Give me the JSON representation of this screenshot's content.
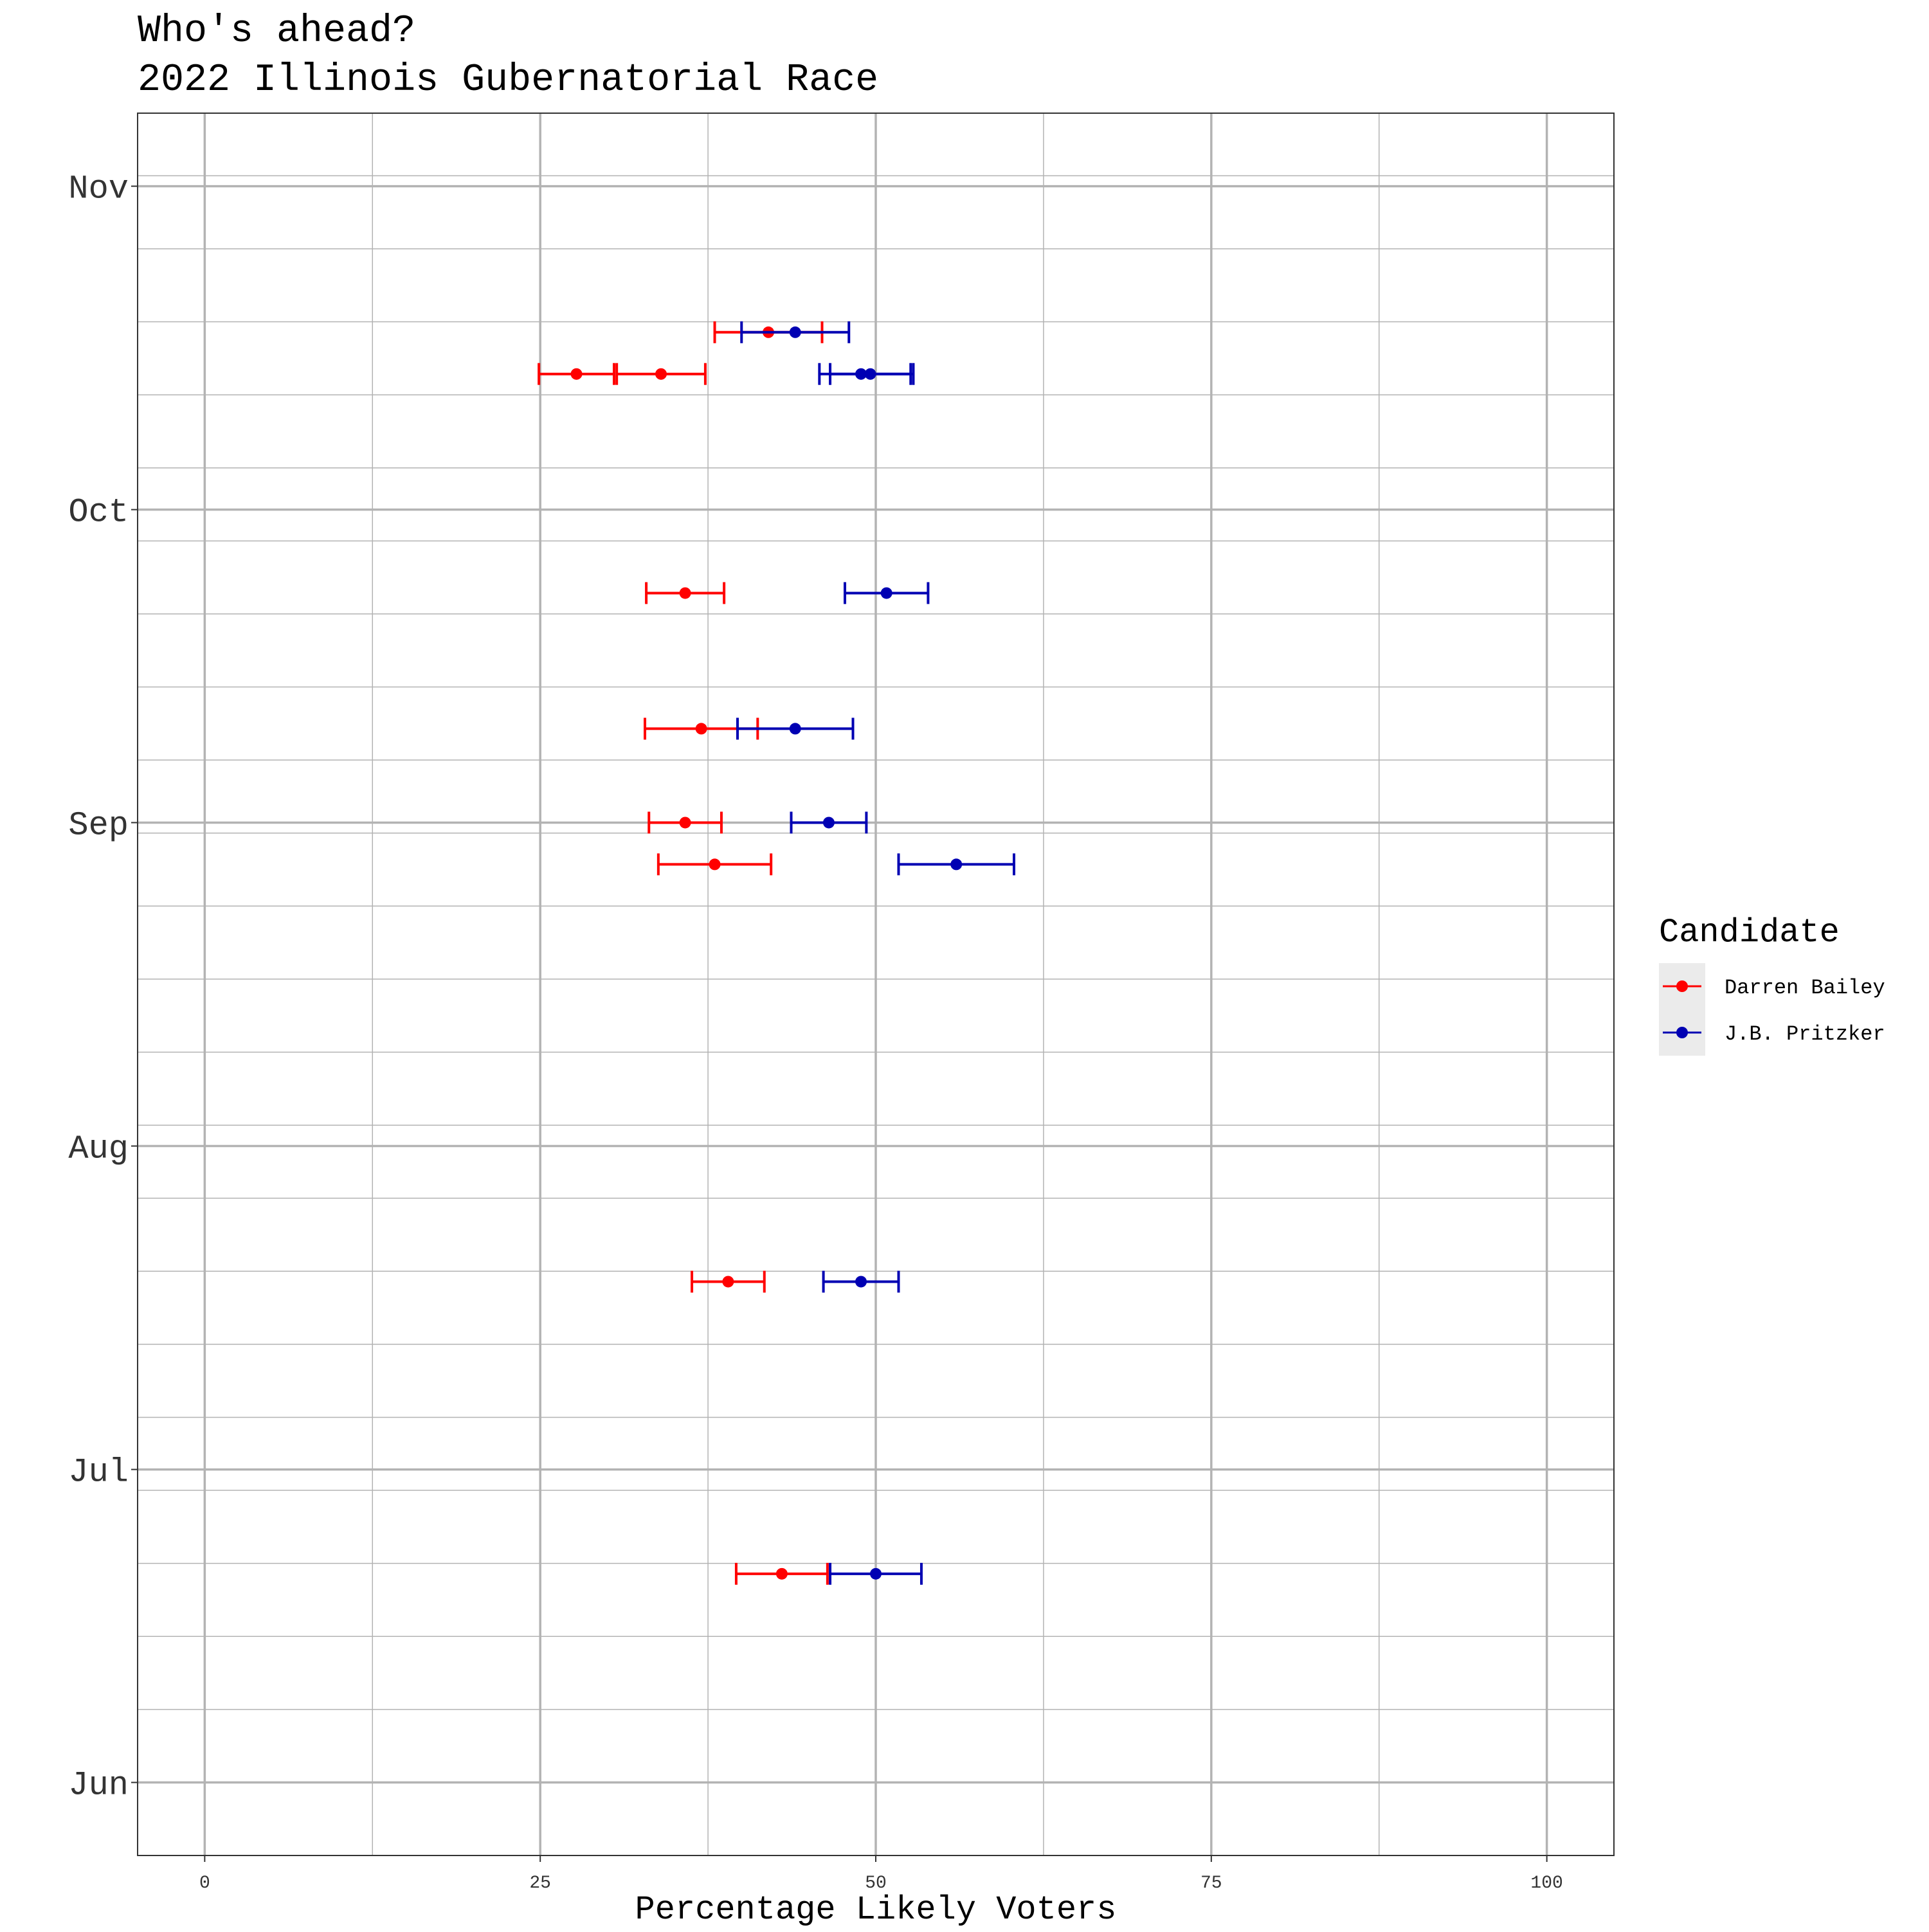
{
  "chart_data": {
    "type": "scatter",
    "title": "Who's ahead?",
    "subtitle": "2022 Illinois Gubernatorial Race",
    "xlabel": "Percentage Likely Voters",
    "ylabel": "",
    "xlim": [
      -5,
      105
    ],
    "x_ticks": [
      0,
      25,
      50,
      75,
      100
    ],
    "x_tick_labels": [
      "0",
      "25",
      "50",
      "75",
      "100"
    ],
    "y_axis_type": "date",
    "ylim": [
      "2022-05-25",
      "2022-11-08"
    ],
    "y_ticks": [
      "2022-06-01",
      "2022-07-01",
      "2022-08-01",
      "2022-09-01",
      "2022-10-01",
      "2022-11-01"
    ],
    "y_tick_labels": [
      "Jun",
      "Jul",
      "Aug",
      "Sep",
      "Oct",
      "Nov"
    ],
    "grid": true,
    "legend": {
      "title": "Candidate",
      "position": "right"
    },
    "series": [
      {
        "name": "Darren Bailey",
        "color": "#ff0000",
        "points": [
          {
            "date": "2022-10-18",
            "value": 42,
            "low": 38,
            "high": 46
          },
          {
            "date": "2022-10-14",
            "value": 34,
            "low": 30.7,
            "high": 37.3
          },
          {
            "date": "2022-10-14",
            "value": 27.7,
            "low": 24.9,
            "high": 30.5
          },
          {
            "date": "2022-09-23",
            "value": 35.8,
            "low": 32.9,
            "high": 38.7
          },
          {
            "date": "2022-09-10",
            "value": 37,
            "low": 32.8,
            "high": 41.2
          },
          {
            "date": "2022-09-01",
            "value": 35.8,
            "low": 33.1,
            "high": 38.5
          },
          {
            "date": "2022-08-28",
            "value": 38,
            "low": 33.8,
            "high": 42.2
          },
          {
            "date": "2022-07-19",
            "value": 39,
            "low": 36.3,
            "high": 41.7
          },
          {
            "date": "2022-06-21",
            "value": 43,
            "low": 39.6,
            "high": 46.4
          }
        ]
      },
      {
        "name": "J.B. Pritzker",
        "color": "#0000b3",
        "points": [
          {
            "date": "2022-10-18",
            "value": 44,
            "low": 40,
            "high": 48
          },
          {
            "date": "2022-10-14",
            "value": 49.6,
            "low": 46.6,
            "high": 52.6
          },
          {
            "date": "2022-10-14",
            "value": 48.9,
            "low": 45.8,
            "high": 52.8
          },
          {
            "date": "2022-09-23",
            "value": 50.8,
            "low": 47.7,
            "high": 53.9
          },
          {
            "date": "2022-09-10",
            "value": 44,
            "low": 39.7,
            "high": 48.3
          },
          {
            "date": "2022-09-01",
            "value": 46.5,
            "low": 43.7,
            "high": 49.3
          },
          {
            "date": "2022-08-28",
            "value": 56,
            "low": 51.7,
            "high": 60.3
          },
          {
            "date": "2022-07-19",
            "value": 48.9,
            "low": 46.1,
            "high": 51.7
          },
          {
            "date": "2022-06-21",
            "value": 50,
            "low": 46.6,
            "high": 53.4
          }
        ]
      }
    ]
  }
}
